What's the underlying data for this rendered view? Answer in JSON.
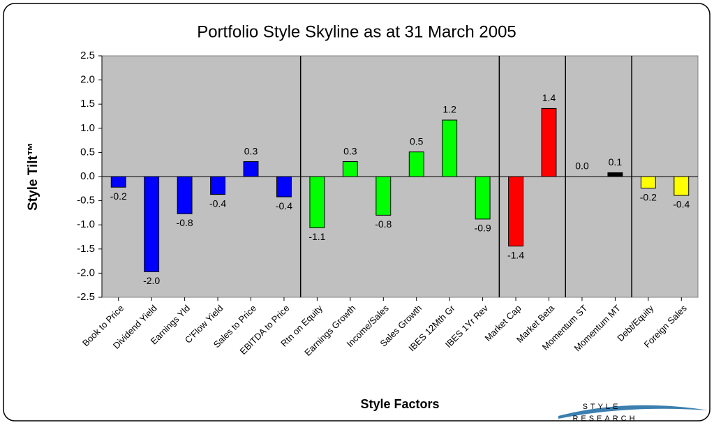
{
  "chart_data": {
    "type": "bar",
    "title": "Portfolio Style Skyline as at 31 March 2005",
    "x_label": "Style Factors",
    "y_label": "Style Tilt™",
    "logo_lines": [
      "STYLE",
      "RESEARCH"
    ],
    "categories": [
      "Book to Price",
      "Dividend Yield",
      "Earnings Yld",
      "C'Flow Yield",
      "Sales to Price",
      "EBITDA to Price",
      "Rtn on Equity",
      "Earnings Growth",
      "Income/Sales",
      "Sales Growth",
      "IBES 12Mth Gr",
      "IBES 1Yr Rev",
      "Market Cap",
      "Market Beta",
      "Momentum ST",
      "Momentum MT",
      "Debt/Equity",
      "Foreign Sales"
    ],
    "values": [
      -0.22,
      -1.97,
      -0.77,
      -0.37,
      0.31,
      -0.42,
      -1.06,
      0.31,
      -0.8,
      0.51,
      1.17,
      -0.88,
      -1.44,
      1.41,
      0.0,
      0.08,
      -0.24,
      -0.39
    ],
    "value_labels": [
      "-0.2",
      "-2.0",
      "-0.8",
      "-0.4",
      "0.3",
      "-0.4",
      "-1.1",
      "0.3",
      "-0.8",
      "0.5",
      "1.2",
      "-0.9",
      "-1.4",
      "1.4",
      "0.0",
      "0.1",
      "-0.2",
      "-0.4"
    ],
    "colors": [
      "#0000ff",
      "#0000ff",
      "#0000ff",
      "#0000ff",
      "#0000ff",
      "#0000ff",
      "#00ff00",
      "#00ff00",
      "#00ff00",
      "#00ff00",
      "#00ff00",
      "#00ff00",
      "#ff0000",
      "#ff0000",
      "#000000",
      "#000000",
      "#ffff00",
      "#ffff00"
    ],
    "ylim": [
      -2.5,
      2.5
    ],
    "yticks": [
      -2.5,
      {
        "value": -2,
        "label": "-2.0"
      },
      -1.5,
      {
        "value": -1,
        "label": "-1.0"
      },
      -0.5,
      {
        "value": 0,
        "label": "0.0"
      },
      0.5,
      {
        "value": 1,
        "label": "1.0"
      },
      1.5,
      {
        "value": 2,
        "label": "2.0"
      },
      2.5
    ],
    "plot_background": "#c0c0c0"
  }
}
